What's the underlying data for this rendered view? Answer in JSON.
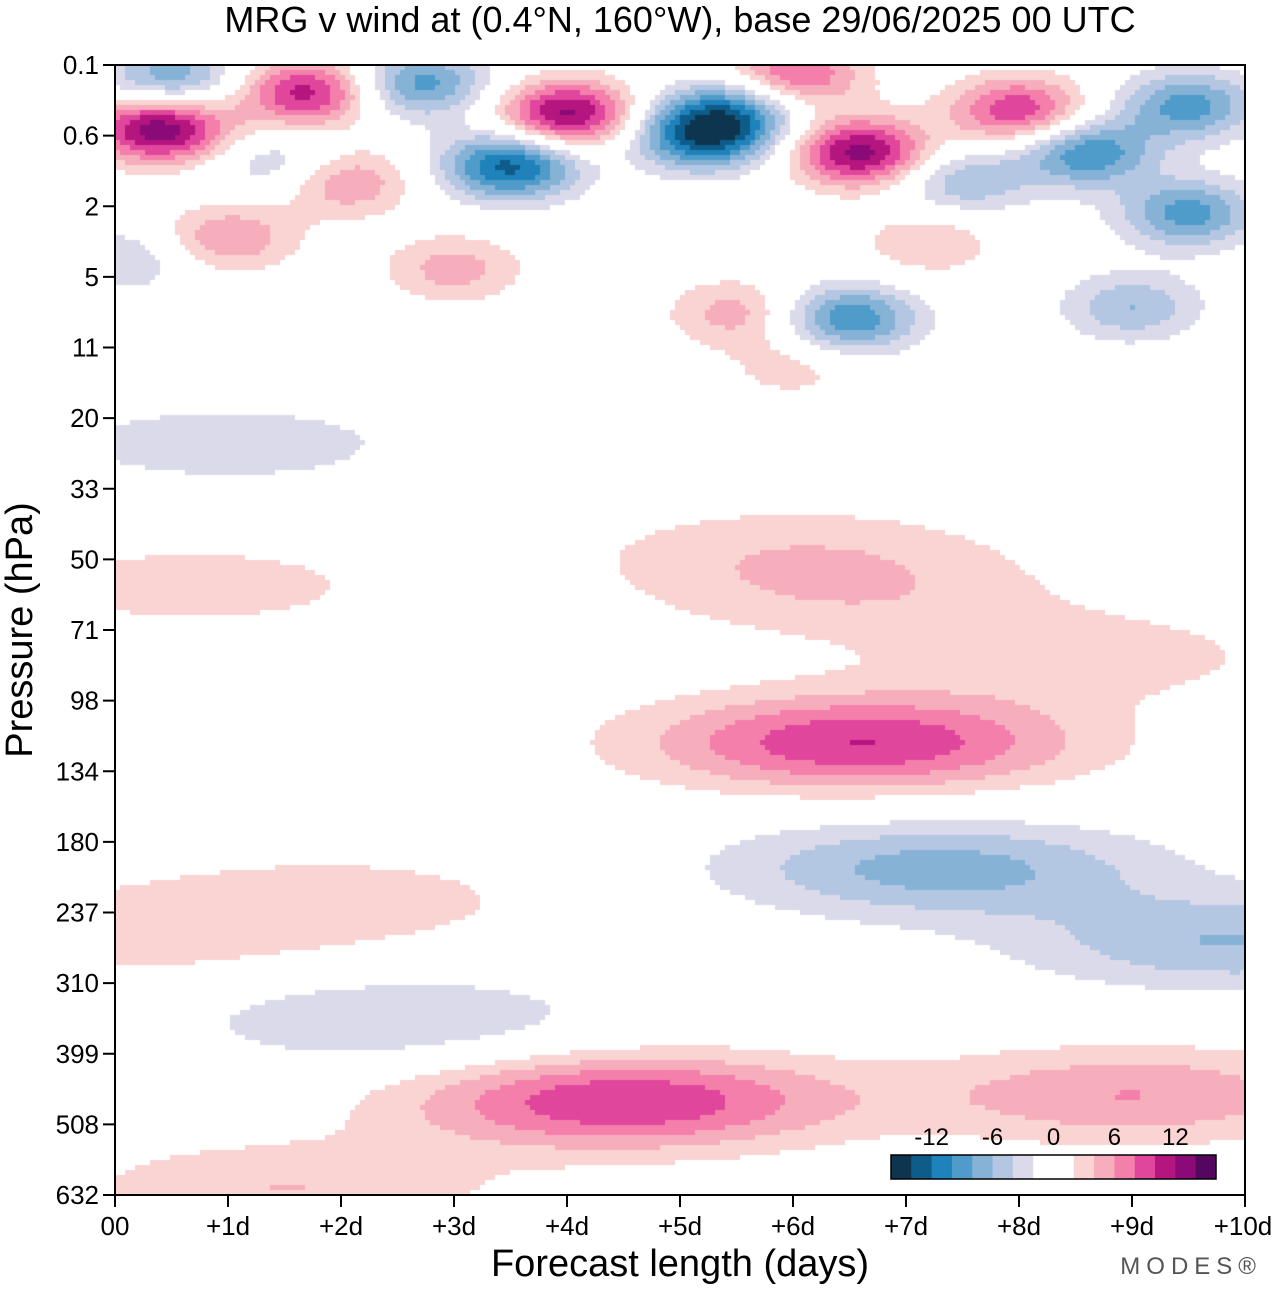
{
  "chart_data": {
    "type": "heatmap",
    "title": "MRG v wind at (0.4°N, 160°W),  base 29/06/2025  00 UTC",
    "xlabel": "Forecast length (days)",
    "ylabel": "Pressure (hPa)",
    "x_ticks": [
      "00",
      "+1d",
      "+2d",
      "+3d",
      "+4d",
      "+5d",
      "+6d",
      "+7d",
      "+8d",
      "+9d",
      "+10d"
    ],
    "y_ticks": [
      "0.1",
      "0.6",
      "2",
      "5",
      "11",
      "20",
      "33",
      "50",
      "71",
      "98",
      "134",
      "180",
      "237",
      "310",
      "399",
      "508",
      "632"
    ],
    "xlim": [
      0,
      10
    ],
    "ylim": [
      0.1,
      632
    ],
    "y_scale": "log",
    "y_inverted": true,
    "colorbar": {
      "tick_labels": [
        "-12",
        "-6",
        "0",
        "6",
        "12"
      ],
      "tick_values": [
        -12,
        -6,
        0,
        6,
        12
      ],
      "colors": [
        "#0d3550",
        "#0e5c8a",
        "#1f82bb",
        "#4f9cca",
        "#86b2d6",
        "#b3c6e2",
        "#dadaea",
        "#ffffff",
        "#ffffff",
        "#fad3d3",
        "#f6adbc",
        "#f47fab",
        "#e0479c",
        "#b4157f",
        "#8a0b78",
        "#55065f"
      ],
      "levels": [
        -14,
        -12,
        -10,
        -8,
        -6,
        -4,
        -2,
        0,
        2,
        4,
        6,
        8,
        10,
        12,
        14
      ]
    },
    "features": [
      {
        "day": 0.4,
        "p": 0.5,
        "v": 14
      },
      {
        "day": 1.7,
        "p": 0.2,
        "v": 11
      },
      {
        "day": 0.5,
        "p": 0.14,
        "v": -8
      },
      {
        "day": 2.7,
        "p": 0.16,
        "v": -9
      },
      {
        "day": 1.5,
        "p": 1.0,
        "v": -5
      },
      {
        "day": 2.0,
        "p": 1.3,
        "v": 7
      },
      {
        "day": 3.5,
        "p": 1.0,
        "v": -13
      },
      {
        "day": 4.0,
        "p": 0.35,
        "v": 13
      },
      {
        "day": 5.2,
        "p": 0.6,
        "v": -13
      },
      {
        "day": 5.5,
        "p": 0.3,
        "v": -8
      },
      {
        "day": 6.6,
        "p": 0.8,
        "v": 13
      },
      {
        "day": 6.0,
        "p": 0.13,
        "v": 9
      },
      {
        "day": 8.0,
        "p": 0.32,
        "v": 10
      },
      {
        "day": 8.6,
        "p": 0.8,
        "v": -10
      },
      {
        "day": 9.5,
        "p": 0.28,
        "v": -9
      },
      {
        "day": 9.5,
        "p": 2.2,
        "v": -9
      },
      {
        "day": 7.5,
        "p": 1.3,
        "v": -6
      },
      {
        "day": 1.0,
        "p": 3.0,
        "v": 6
      },
      {
        "day": 3.0,
        "p": 4.5,
        "v": 5
      },
      {
        "day": 5.5,
        "p": 7.5,
        "v": 5
      },
      {
        "day": 6.5,
        "p": 8.0,
        "v": -10
      },
      {
        "day": 7.2,
        "p": 3.2,
        "v": 4
      },
      {
        "day": 9.0,
        "p": 7.0,
        "v": -6
      },
      {
        "day": 0.1,
        "p": 4.0,
        "v": -4
      },
      {
        "day": 6.0,
        "p": 13.0,
        "v": 3
      },
      {
        "day": 6.6,
        "p": 118.0,
        "v": 10
      },
      {
        "day": 4.5,
        "p": 470.0,
        "v": 10
      },
      {
        "day": 7.3,
        "p": 200.0,
        "v": -7
      },
      {
        "day": 9.9,
        "p": 265.0,
        "v": -6
      },
      {
        "day": 2.5,
        "p": 355.0,
        "v": -4
      },
      {
        "day": 2.0,
        "p": 225.0,
        "v": 3
      },
      {
        "day": 0.1,
        "p": 260.0,
        "v": 3
      },
      {
        "day": 1.5,
        "p": 620.0,
        "v": 4
      },
      {
        "day": 6.0,
        "p": 47.0,
        "v": 3
      },
      {
        "day": 6.5,
        "p": 60.0,
        "v": 3
      },
      {
        "day": 8.6,
        "p": 80.0,
        "v": 3
      },
      {
        "day": 1.0,
        "p": 24.0,
        "v": -3
      },
      {
        "day": 0.7,
        "p": 57.0,
        "v": 3
      },
      {
        "day": 9.0,
        "p": 460.0,
        "v": 6
      }
    ]
  },
  "brand": "MODES®"
}
